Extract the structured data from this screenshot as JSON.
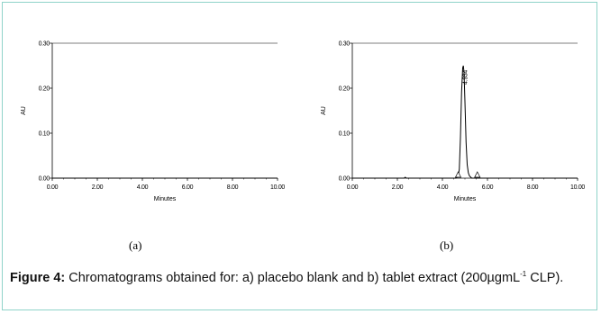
{
  "chart_data": [
    {
      "type": "line",
      "panel_label": "(a)",
      "xlabel": "Minutes",
      "ylabel": "AU",
      "xlim": [
        0,
        10
      ],
      "ylim": [
        0,
        0.3
      ],
      "x_ticks": [
        "0.00",
        "2.00",
        "4.00",
        "6.00",
        "8.00",
        "10.00"
      ],
      "y_ticks": [
        "0.00",
        "0.10",
        "0.20",
        "0.30"
      ],
      "series": [
        {
          "x": [
            0,
            10
          ],
          "y": [
            0,
            0
          ]
        }
      ],
      "peaks": []
    },
    {
      "type": "line",
      "panel_label": "(b)",
      "xlabel": "Minutes",
      "ylabel": "AU",
      "xlim": [
        0,
        10
      ],
      "ylim": [
        0,
        0.3
      ],
      "x_ticks": [
        "0.00",
        "2.00",
        "4.00",
        "6.00",
        "8.00",
        "10.00"
      ],
      "y_ticks": [
        "0.00",
        "0.10",
        "0.20",
        "0.30"
      ],
      "series": [
        {
          "x": [
            0,
            2.3,
            2.35,
            2.4,
            4.6,
            4.7,
            4.75,
            4.8,
            4.85,
            4.9,
            4.93,
            4.96,
            5.0,
            5.05,
            5.1,
            5.15,
            5.2,
            5.3,
            10
          ],
          "y": [
            0,
            0,
            0.002,
            0,
            0,
            0.004,
            0.02,
            0.09,
            0.19,
            0.245,
            0.25,
            0.235,
            0.17,
            0.08,
            0.03,
            0.012,
            0.005,
            0,
            0
          ]
        }
      ],
      "peaks": [
        {
          "label": "4.934",
          "x": 4.934,
          "y": 0.25
        }
      ],
      "integration_markers": [
        4.7,
        5.55
      ]
    }
  ],
  "caption": {
    "label": "Figure 4:",
    "text_before_sup": " Chromatograms obtained for: a) placebo blank and b) tablet extract (200µgmL",
    "sup": "-1",
    "text_after_sup": " CLP)."
  }
}
